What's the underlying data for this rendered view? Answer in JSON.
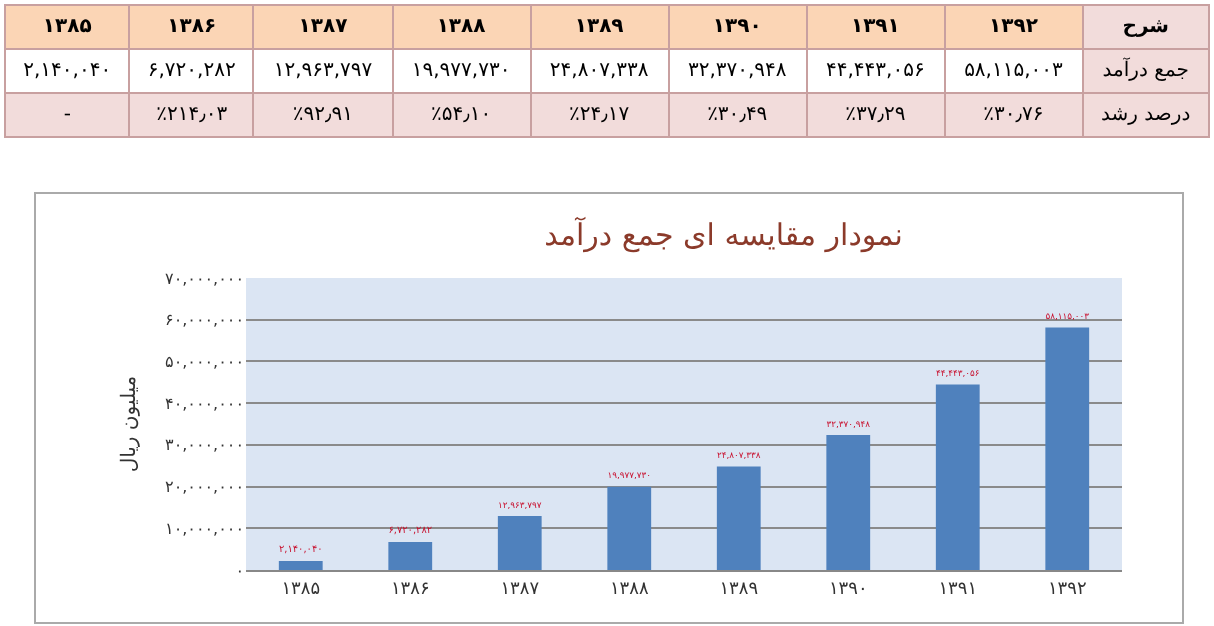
{
  "chart_data": {
    "type": "bar",
    "title": "نمودار مقایسه ای جمع درآمد",
    "ylabel": "میلیون ریال",
    "categories": [
      "۱۳۸۵",
      "۱۳۸۶",
      "۱۳۸۷",
      "۱۳۸۸",
      "۱۳۸۹",
      "۱۳۹۰",
      "۱۳۹۱",
      "۱۳۹۲"
    ],
    "values": [
      2140040,
      6720282,
      12963797,
      19977730,
      24807338,
      32370948,
      44443056,
      58115003
    ],
    "value_labels": [
      "۲,۱۴۰,۰۴۰",
      "۶,۷۲۰,۲۸۲",
      "۱۲,۹۶۳,۷۹۷",
      "۱۹,۹۷۷,۷۳۰",
      "۲۴,۸۰۷,۳۳۸",
      "۳۲,۳۷۰,۹۴۸",
      "۴۴,۴۴۳,۰۵۶",
      "۵۸,۱۱۵,۰۰۳"
    ],
    "annotations": [
      "شرح",
      "جمع درآمد",
      "درصد رشد",
      "-",
      "٪۲۱۴٫۰۳",
      "٪۹۲٫۹۱",
      "٪۵۴٫۱۰",
      "٪۲۴٫۱۷",
      "٪۳۰٫۴۹",
      "٪۳۷٫۲۹",
      "٪۳۰٫۷۶"
    ],
    "color": "#4f81bd",
    "ylim": [
      0,
      70000000
    ],
    "yticks": [
      {
        "value": 0,
        "label": "۰"
      },
      {
        "value": 10000000,
        "label": "۱۰,۰۰۰,۰۰۰"
      },
      {
        "value": 20000000,
        "label": "۲۰,۰۰۰,۰۰۰"
      },
      {
        "value": 30000000,
        "label": "۳۰,۰۰۰,۰۰۰"
      },
      {
        "value": 40000000,
        "label": "۴۰,۰۰۰,۰۰۰"
      },
      {
        "value": 50000000,
        "label": "۵۰,۰۰۰,۰۰۰"
      },
      {
        "value": 60000000,
        "label": "۶۰,۰۰۰,۰۰۰"
      },
      {
        "value": 70000000,
        "label": "۷۰,۰۰۰,۰۰۰"
      }
    ],
    "grid": "y"
  }
}
